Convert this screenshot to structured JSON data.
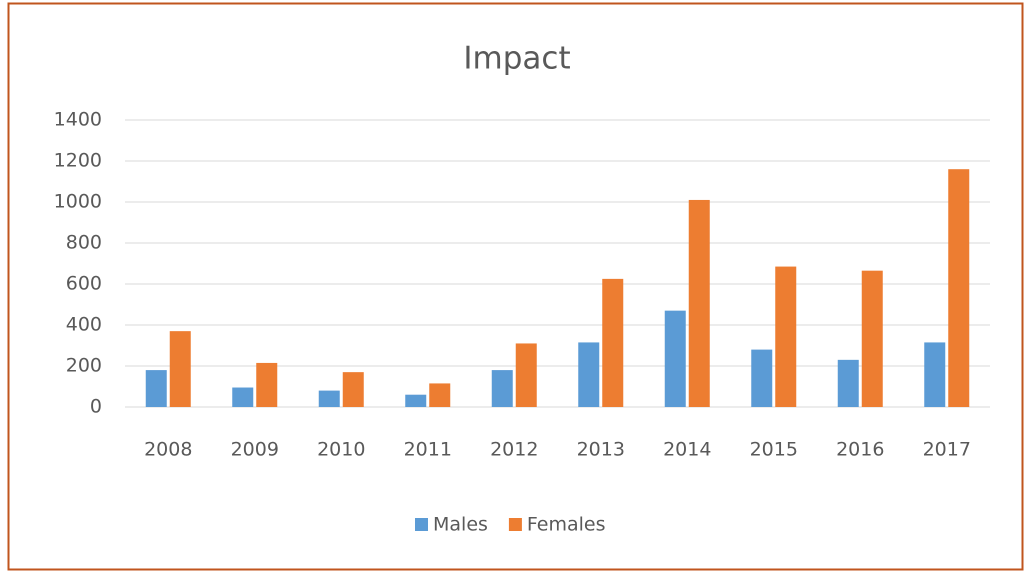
{
  "chart_data": {
    "type": "bar",
    "title": "Impact",
    "categories": [
      "2008",
      "2009",
      "2010",
      "2011",
      "2012",
      "2013",
      "2014",
      "2015",
      "2016",
      "2017"
    ],
    "series": [
      {
        "name": "Males",
        "color": "#5b9bd5",
        "values": [
          180,
          95,
          80,
          60,
          180,
          315,
          470,
          280,
          230,
          315
        ]
      },
      {
        "name": "Females",
        "color": "#ed7d31",
        "values": [
          370,
          215,
          170,
          115,
          310,
          625,
          1010,
          685,
          665,
          1160
        ]
      }
    ],
    "ylim": [
      0,
      1400
    ],
    "yticks": [
      0,
      200,
      400,
      600,
      800,
      1000,
      1200,
      1400
    ],
    "grid": true,
    "legend": "bottom"
  }
}
